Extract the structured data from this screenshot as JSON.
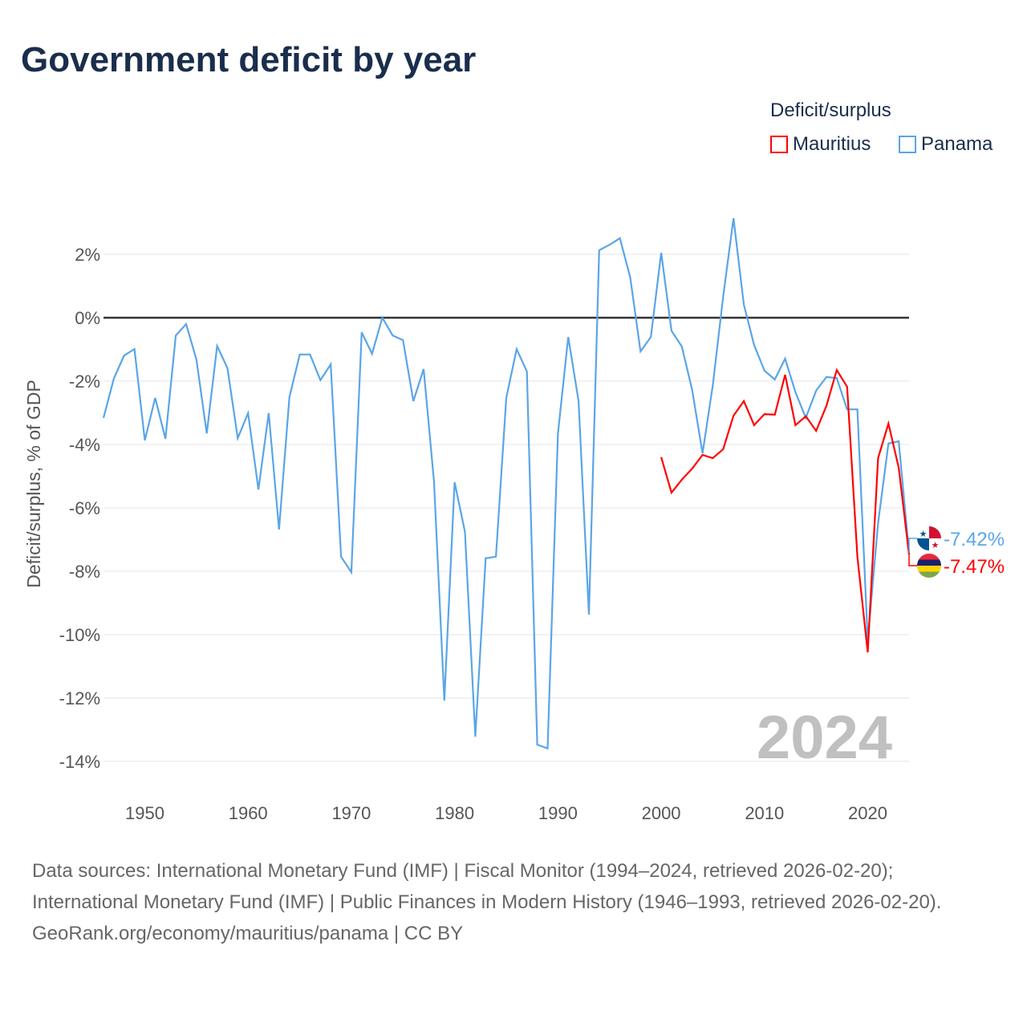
{
  "title": "Government deficit by year",
  "legend": {
    "title": "Deficit/surplus",
    "items": [
      {
        "name": "Mauritius",
        "color": "#ff0000"
      },
      {
        "name": "Panama",
        "color": "#5aa5e8"
      }
    ]
  },
  "year_watermark": "2024",
  "footer": {
    "sources": "Data sources: International Monetary Fund (IMF) | Fiscal Monitor (1994–2024, retrieved 2026-02-20); International Monetary Fund (IMF) | Public Finances in Modern History (1946–1993, retrieved 2026-02-20).",
    "credit": "GeoRank.org/economy/mauritius/panama | CC BY"
  },
  "chart_data": {
    "type": "line",
    "title": "Government deficit by year",
    "ylabel": "Deficit/surplus, % of GDP",
    "xlabel": "",
    "xlim": [
      1946,
      2024
    ],
    "ylim": [
      -15,
      3.5
    ],
    "yticks": [
      2,
      0,
      -2,
      -4,
      -6,
      -8,
      -10,
      -12,
      -14
    ],
    "ytick_labels": [
      "2%",
      "0%",
      "-2%",
      "-4%",
      "-6%",
      "-8%",
      "-10%",
      "-12%",
      "-14%"
    ],
    "xticks": [
      1950,
      1960,
      1970,
      1980,
      1990,
      2000,
      2010,
      2020
    ],
    "xtick_labels": [
      "1950",
      "1960",
      "1970",
      "1980",
      "1990",
      "2000",
      "2010",
      "2020"
    ],
    "grid": true,
    "legend_position": "top-right",
    "series": [
      {
        "name": "Mauritius",
        "color": "#ff0000",
        "end_label": "-7.47%",
        "start_year": 2000,
        "values": [
          -4.4,
          -5.52,
          -5.11,
          -4.76,
          -4.33,
          -4.43,
          -4.15,
          -3.09,
          -2.63,
          -3.39,
          -3.04,
          -3.06,
          -1.8,
          -3.39,
          -3.11,
          -3.57,
          -2.78,
          -1.65,
          -2.18,
          -7.54,
          -10.56,
          -4.43,
          -3.34,
          -4.73,
          -7.47
        ]
      },
      {
        "name": "Panama",
        "color": "#5aa5e8",
        "end_label": "-7.42%",
        "start_year": 1946,
        "values": [
          -3.16,
          -1.92,
          -1.19,
          -0.99,
          -3.87,
          -2.53,
          -3.82,
          -0.56,
          -0.2,
          -1.32,
          -3.65,
          -0.89,
          -1.59,
          -3.8,
          -3.01,
          -5.42,
          -3.01,
          -6.68,
          -2.51,
          -1.16,
          -1.16,
          -1.97,
          -1.47,
          -7.54,
          -8.03,
          -0.46,
          -1.14,
          0.0,
          -0.56,
          -0.71,
          -2.63,
          -1.62,
          -5.16,
          -12.08,
          -5.19,
          -6.76,
          -13.22,
          -7.59,
          -7.54,
          -2.53,
          -0.99,
          -1.7,
          -13.47,
          -13.59,
          -3.65,
          -0.61,
          -2.63,
          -9.37,
          2.13,
          2.3,
          2.51,
          1.27,
          -1.06,
          -0.61,
          2.05,
          -0.41,
          -0.91,
          -2.28,
          -4.28,
          -2.13,
          0.66,
          3.14,
          0.41,
          -0.86,
          -1.67,
          -1.95,
          -1.29,
          -2.35,
          -3.16,
          -2.3,
          -1.87,
          -1.9,
          -2.89,
          -2.89,
          -10.18,
          -6.48,
          -3.97,
          -3.9,
          -7.42
        ]
      }
    ]
  }
}
